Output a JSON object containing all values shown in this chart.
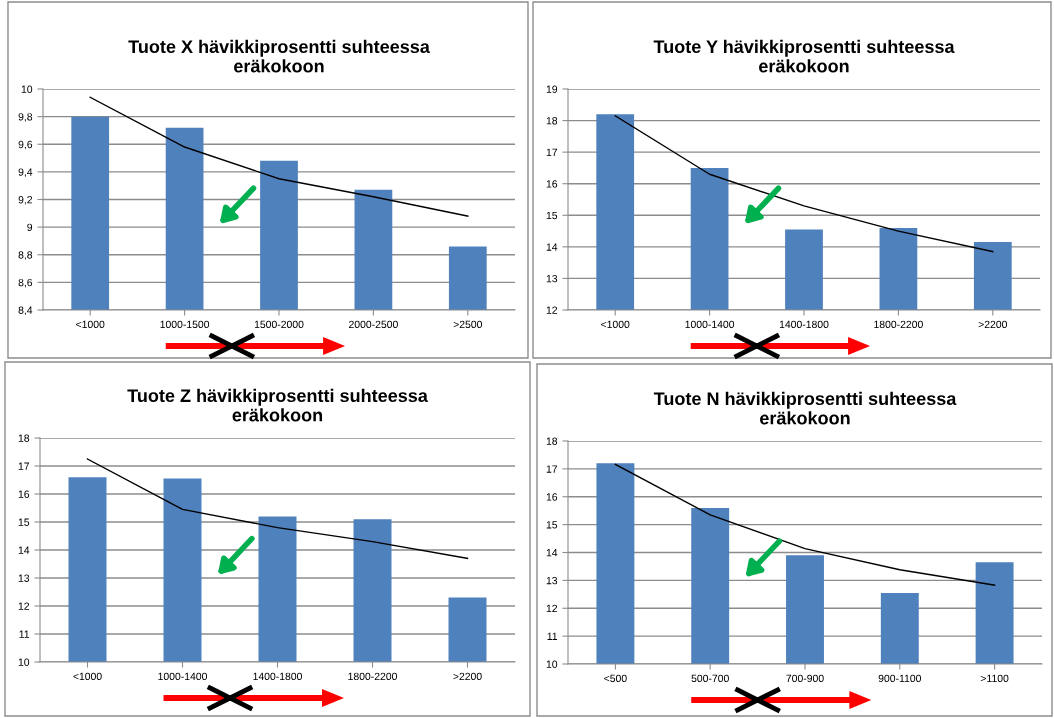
{
  "chart_data": [
    {
      "type": "bar",
      "title": "Tuote X hävikkiprosentti suhteessa\neräkokoon",
      "categories": [
        "<1000",
        "1000-1500",
        "1500-2000",
        "2000-2500",
        ">2500"
      ],
      "ylim": [
        8.4,
        10
      ],
      "yticks": [
        {
          "value": 8.4,
          "label": "8,4"
        },
        {
          "value": 8.6,
          "label": "8,6"
        },
        {
          "value": 8.8,
          "label": "8,8"
        },
        {
          "value": 9,
          "label": "9"
        },
        {
          "value": 9.2,
          "label": "9,2"
        },
        {
          "value": 9.4,
          "label": "9,4"
        },
        {
          "value": 9.6,
          "label": "9,6"
        },
        {
          "value": 9.8,
          "label": "9,8"
        },
        {
          "value": 10,
          "label": "10"
        }
      ],
      "grid": "y",
      "legend": false,
      "series": [
        {
          "color": "#4f81bd",
          "values": [
            9.8,
            9.72,
            9.48,
            9.27,
            8.86
          ]
        },
        {
          "type": "line",
          "color": "#000000",
          "values": [
            9.94,
            9.58,
            9.35,
            9.22,
            9.08
          ]
        }
      ]
    },
    {
      "type": "bar",
      "title": "Tuote Y hävikkiprosentti suhteessa\neräkokoon",
      "categories": [
        "<1000",
        "1000-1400",
        "1400-1800",
        "1800-2200",
        ">2200"
      ],
      "ylim": [
        12,
        19
      ],
      "yticks": [
        12,
        13,
        14,
        15,
        16,
        17,
        18,
        19
      ],
      "grid": "y",
      "legend": false,
      "series": [
        {
          "color": "#4f81bd",
          "values": [
            18.2,
            16.5,
            14.55,
            14.6,
            14.15
          ]
        },
        {
          "type": "line",
          "color": "#000000",
          "values": [
            18.15,
            16.3,
            15.3,
            14.5,
            13.85
          ]
        }
      ]
    },
    {
      "type": "bar",
      "title": "Tuote Z hävikkiprosentti suhteessa\neräkokoon",
      "categories": [
        "<1000",
        "1000-1400",
        "1400-1800",
        "1800-2200",
        ">2200"
      ],
      "ylim": [
        10,
        18
      ],
      "yticks": [
        10,
        11,
        12,
        13,
        14,
        15,
        16,
        17,
        18
      ],
      "grid": "y",
      "legend": false,
      "series": [
        {
          "color": "#4f81bd",
          "values": [
            16.6,
            16.55,
            15.2,
            15.1,
            12.3
          ]
        },
        {
          "type": "line",
          "color": "#000000",
          "values": [
            17.25,
            15.45,
            14.8,
            14.3,
            13.7
          ]
        }
      ]
    },
    {
      "type": "bar",
      "title": "Tuote N hävikkiprosentti suhteessa\neräkokoon",
      "categories": [
        "<500",
        "500-700",
        "700-900",
        "900-1100",
        ">1100"
      ],
      "ylim": [
        10,
        18
      ],
      "yticks": [
        10,
        11,
        12,
        13,
        14,
        15,
        16,
        17,
        18
      ],
      "grid": "y",
      "legend": false,
      "series": [
        {
          "color": "#4f81bd",
          "values": [
            17.2,
            15.6,
            13.9,
            12.55,
            13.65
          ]
        },
        {
          "type": "line",
          "color": "#000000",
          "values": [
            17.16,
            15.35,
            14.14,
            13.38,
            12.83
          ]
        }
      ]
    }
  ]
}
